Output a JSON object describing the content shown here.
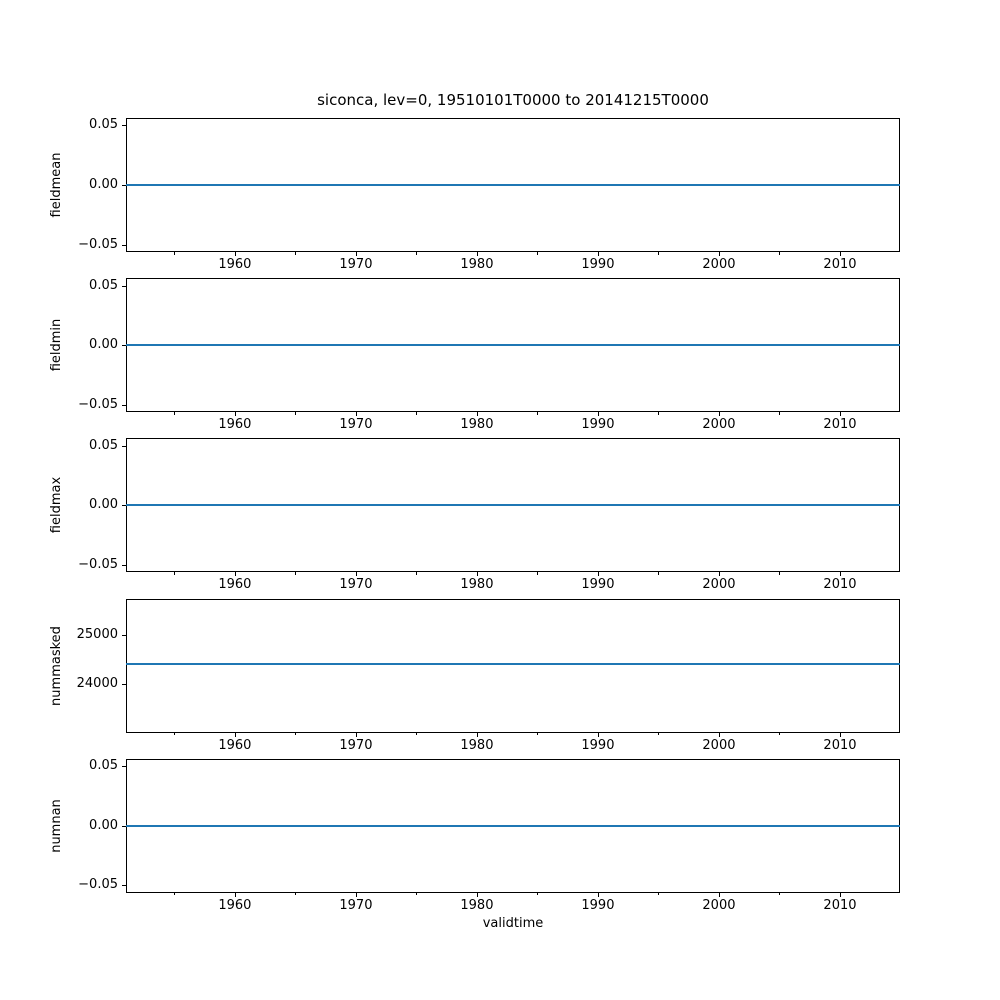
{
  "chart_data": {
    "type": "line",
    "title": "siconca, lev=0, 19510101T0000 to 20141215T0000",
    "xlabel": "validtime",
    "line_color": "#1f77b4",
    "axis_color": "#000000",
    "background_color": "#ffffff",
    "x_axis": {
      "lim": [
        1951.0,
        2014.96
      ],
      "major_ticks": [
        1960,
        1970,
        1980,
        1990,
        2000,
        2010
      ],
      "major_tick_labels": [
        "1960",
        "1970",
        "1980",
        "1990",
        "2000",
        "2010"
      ],
      "minor_ticks": [
        1955,
        1965,
        1975,
        1985,
        1995,
        2005
      ],
      "grid": false
    },
    "subplots": [
      {
        "ylabel": "fieldmean",
        "ylim": [
          -0.05625,
          0.05625
        ],
        "yticks": [
          {
            "value": 0.05,
            "label": "0.05"
          },
          {
            "value": 0.0,
            "label": "0.00"
          },
          {
            "value": -0.05,
            "label": "−0.05"
          }
        ],
        "series": {
          "name": "fieldmean",
          "constant_value": 0.0
        }
      },
      {
        "ylabel": "fieldmin",
        "ylim": [
          -0.05625,
          0.05625
        ],
        "yticks": [
          {
            "value": 0.05,
            "label": "0.05"
          },
          {
            "value": 0.0,
            "label": "0.00"
          },
          {
            "value": -0.05,
            "label": "−0.05"
          }
        ],
        "series": {
          "name": "fieldmin",
          "constant_value": 0.0
        }
      },
      {
        "ylabel": "fieldmax",
        "ylim": [
          -0.05625,
          0.05625
        ],
        "yticks": [
          {
            "value": 0.05,
            "label": "0.05"
          },
          {
            "value": 0.0,
            "label": "0.00"
          },
          {
            "value": -0.05,
            "label": "−0.05"
          }
        ],
        "series": {
          "name": "fieldmax",
          "constant_value": 0.0
        }
      },
      {
        "ylabel": "nummasked",
        "ylim": [
          23000,
          25740
        ],
        "yticks": [
          {
            "value": 25000,
            "label": "25000"
          },
          {
            "value": 24000,
            "label": "24000"
          }
        ],
        "series": {
          "name": "nummasked",
          "constant_value": 24400
        }
      },
      {
        "ylabel": "numnan",
        "ylim": [
          -0.05625,
          0.05625
        ],
        "yticks": [
          {
            "value": 0.05,
            "label": "0.05"
          },
          {
            "value": 0.0,
            "label": "0.00"
          },
          {
            "value": -0.05,
            "label": "−0.05"
          }
        ],
        "series": {
          "name": "numnan",
          "constant_value": 0.0
        }
      }
    ]
  }
}
